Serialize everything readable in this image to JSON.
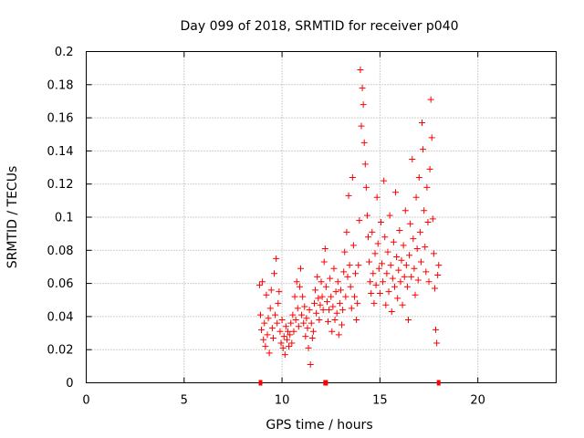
{
  "chart_data": {
    "type": "scatter",
    "title": "Day 099 of 2018, SRMTID for receiver p040",
    "xlabel": "GPS time / hours",
    "ylabel": "SRMTID / TECUs",
    "xlim": [
      0,
      24
    ],
    "ylim": [
      0,
      0.2
    ],
    "grid": true,
    "legend": "none",
    "x_ticks": [
      0,
      5,
      10,
      15,
      20
    ],
    "x_tick_labels": [
      "0",
      "5",
      "10",
      "15",
      "20"
    ],
    "y_ticks": [
      0,
      0.02,
      0.04,
      0.06,
      0.08,
      0.1,
      0.12,
      0.14,
      0.16,
      0.18,
      0.2
    ],
    "y_tick_labels": [
      "0",
      "0.02",
      "0.04",
      "0.06",
      "0.08",
      "0.1",
      "0.12",
      "0.14",
      "0.16",
      "0.18",
      "0.2"
    ],
    "marker": "+",
    "color": "#ff0000",
    "data_gap_markers_x": [
      8.9,
      12.2,
      12.25,
      18.0
    ],
    "series": [
      {
        "name": "SRMTID p040",
        "points": [
          [
            8.85,
            0.059
          ],
          [
            8.9,
            0.041
          ],
          [
            8.95,
            0.032
          ],
          [
            9.0,
            0.061
          ],
          [
            9.05,
            0.026
          ],
          [
            9.1,
            0.036
          ],
          [
            9.15,
            0.022
          ],
          [
            9.2,
            0.053
          ],
          [
            9.25,
            0.029
          ],
          [
            9.3,
            0.039
          ],
          [
            9.35,
            0.018
          ],
          [
            9.4,
            0.045
          ],
          [
            9.45,
            0.056
          ],
          [
            9.5,
            0.033
          ],
          [
            9.55,
            0.027
          ],
          [
            9.6,
            0.066
          ],
          [
            9.65,
            0.041
          ],
          [
            9.7,
            0.075
          ],
          [
            9.75,
            0.036
          ],
          [
            9.8,
            0.048
          ],
          [
            9.85,
            0.055
          ],
          [
            9.9,
            0.031
          ],
          [
            9.95,
            0.024
          ],
          [
            10.0,
            0.038
          ],
          [
            10.05,
            0.021
          ],
          [
            10.1,
            0.028
          ],
          [
            10.15,
            0.017
          ],
          [
            10.2,
            0.034
          ],
          [
            10.25,
            0.026
          ],
          [
            10.3,
            0.031
          ],
          [
            10.35,
            0.022
          ],
          [
            10.4,
            0.029
          ],
          [
            10.45,
            0.036
          ],
          [
            10.5,
            0.024
          ],
          [
            10.55,
            0.041
          ],
          [
            10.6,
            0.031
          ],
          [
            10.65,
            0.052
          ],
          [
            10.7,
            0.038
          ],
          [
            10.75,
            0.061
          ],
          [
            10.8,
            0.045
          ],
          [
            10.85,
            0.034
          ],
          [
            10.9,
            0.058
          ],
          [
            10.95,
            0.069
          ],
          [
            11.0,
            0.041
          ],
          [
            11.05,
            0.052
          ],
          [
            11.1,
            0.036
          ],
          [
            11.15,
            0.046
          ],
          [
            11.2,
            0.028
          ],
          [
            11.25,
            0.039
          ],
          [
            11.3,
            0.033
          ],
          [
            11.35,
            0.021
          ],
          [
            11.4,
            0.044
          ],
          [
            11.45,
            0.011
          ],
          [
            11.5,
            0.036
          ],
          [
            11.55,
            0.027
          ],
          [
            11.6,
            0.031
          ],
          [
            11.65,
            0.048
          ],
          [
            11.7,
            0.056
          ],
          [
            11.75,
            0.042
          ],
          [
            11.8,
            0.064
          ],
          [
            11.85,
            0.051
          ],
          [
            11.9,
            0.038
          ],
          [
            11.95,
            0.047
          ],
          [
            12.0,
            0.061
          ],
          [
            12.05,
            0.052
          ],
          [
            12.1,
            0.044
          ],
          [
            12.15,
            0.073
          ],
          [
            12.2,
            0.081
          ],
          [
            12.25,
            0.058
          ],
          [
            12.3,
            0.049
          ],
          [
            12.35,
            0.037
          ],
          [
            12.4,
            0.044
          ],
          [
            12.45,
            0.063
          ],
          [
            12.5,
            0.052
          ],
          [
            12.55,
            0.031
          ],
          [
            12.6,
            0.046
          ],
          [
            12.65,
            0.069
          ],
          [
            12.7,
            0.038
          ],
          [
            12.75,
            0.055
          ],
          [
            12.8,
            0.042
          ],
          [
            12.85,
            0.061
          ],
          [
            12.9,
            0.029
          ],
          [
            12.95,
            0.048
          ],
          [
            13.0,
            0.056
          ],
          [
            13.05,
            0.035
          ],
          [
            13.1,
            0.044
          ],
          [
            13.15,
            0.067
          ],
          [
            13.2,
            0.079
          ],
          [
            13.25,
            0.052
          ],
          [
            13.3,
            0.091
          ],
          [
            13.35,
            0.064
          ],
          [
            13.4,
            0.113
          ],
          [
            13.45,
            0.071
          ],
          [
            13.5,
            0.058
          ],
          [
            13.55,
            0.045
          ],
          [
            13.6,
            0.124
          ],
          [
            13.65,
            0.083
          ],
          [
            13.7,
            0.052
          ],
          [
            13.75,
            0.066
          ],
          [
            13.8,
            0.038
          ],
          [
            13.85,
            0.048
          ],
          [
            13.9,
            0.071
          ],
          [
            13.95,
            0.098
          ],
          [
            14.0,
            0.189
          ],
          [
            14.05,
            0.155
          ],
          [
            14.1,
            0.178
          ],
          [
            14.15,
            0.168
          ],
          [
            14.2,
            0.145
          ],
          [
            14.25,
            0.132
          ],
          [
            14.3,
            0.118
          ],
          [
            14.35,
            0.101
          ],
          [
            14.4,
            0.088
          ],
          [
            14.45,
            0.073
          ],
          [
            14.5,
            0.061
          ],
          [
            14.55,
            0.054
          ],
          [
            14.6,
            0.091
          ],
          [
            14.65,
            0.066
          ],
          [
            14.7,
            0.048
          ],
          [
            14.75,
            0.078
          ],
          [
            14.8,
            0.059
          ],
          [
            14.85,
            0.112
          ],
          [
            14.9,
            0.084
          ],
          [
            14.95,
            0.069
          ],
          [
            15.0,
            0.054
          ],
          [
            15.05,
            0.097
          ],
          [
            15.1,
            0.072
          ],
          [
            15.15,
            0.061
          ],
          [
            15.2,
            0.122
          ],
          [
            15.25,
            0.088
          ],
          [
            15.3,
            0.047
          ],
          [
            15.35,
            0.066
          ],
          [
            15.4,
            0.079
          ],
          [
            15.45,
            0.055
          ],
          [
            15.5,
            0.101
          ],
          [
            15.55,
            0.071
          ],
          [
            15.6,
            0.043
          ],
          [
            15.65,
            0.063
          ],
          [
            15.7,
            0.085
          ],
          [
            15.75,
            0.058
          ],
          [
            15.8,
            0.115
          ],
          [
            15.85,
            0.076
          ],
          [
            15.9,
            0.051
          ],
          [
            15.95,
            0.068
          ],
          [
            16.0,
            0.092
          ],
          [
            16.05,
            0.061
          ],
          [
            16.1,
            0.074
          ],
          [
            16.15,
            0.047
          ],
          [
            16.2,
            0.083
          ],
          [
            16.25,
            0.064
          ],
          [
            16.3,
            0.104
          ],
          [
            16.35,
            0.071
          ],
          [
            16.4,
            0.058
          ],
          [
            16.45,
            0.038
          ],
          [
            16.5,
            0.077
          ],
          [
            16.55,
            0.096
          ],
          [
            16.6,
            0.064
          ],
          [
            16.65,
            0.135
          ],
          [
            16.7,
            0.087
          ],
          [
            16.75,
            0.069
          ],
          [
            16.8,
            0.053
          ],
          [
            16.85,
            0.112
          ],
          [
            16.9,
            0.081
          ],
          [
            16.95,
            0.062
          ],
          [
            17.0,
            0.124
          ],
          [
            17.05,
            0.091
          ],
          [
            17.1,
            0.073
          ],
          [
            17.15,
            0.157
          ],
          [
            17.2,
            0.141
          ],
          [
            17.25,
            0.104
          ],
          [
            17.3,
            0.082
          ],
          [
            17.35,
            0.067
          ],
          [
            17.4,
            0.118
          ],
          [
            17.45,
            0.097
          ],
          [
            17.5,
            0.061
          ],
          [
            17.55,
            0.129
          ],
          [
            17.6,
            0.171
          ],
          [
            17.65,
            0.148
          ],
          [
            17.7,
            0.099
          ],
          [
            17.75,
            0.078
          ],
          [
            17.8,
            0.057
          ],
          [
            17.85,
            0.032
          ],
          [
            17.9,
            0.024
          ],
          [
            17.95,
            0.065
          ],
          [
            18.0,
            0.071
          ]
        ]
      }
    ]
  }
}
